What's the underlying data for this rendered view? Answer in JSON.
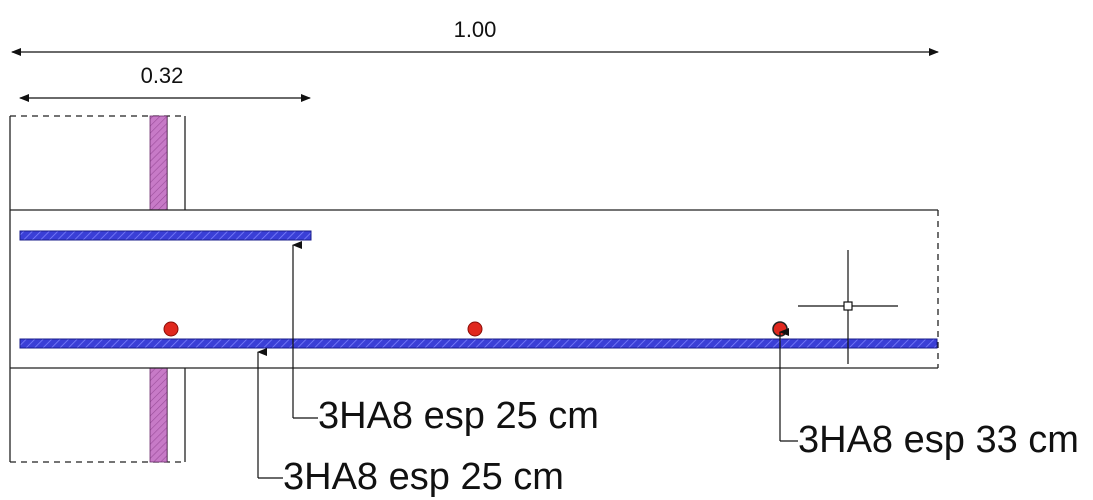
{
  "dimensions": {
    "overall": "1.00",
    "partial": "0.32"
  },
  "callouts": {
    "upper_bar": "3HA8 esp 25 cm",
    "lower_bar": "3HA8 esp 25 cm",
    "transverse_bar": "3HA8 esp 33 cm"
  },
  "colors": {
    "rebar": "#3a3fd6",
    "rebar_dot": "#e0281e",
    "wall_hatch": "#c77ac7",
    "line": "#222222"
  }
}
